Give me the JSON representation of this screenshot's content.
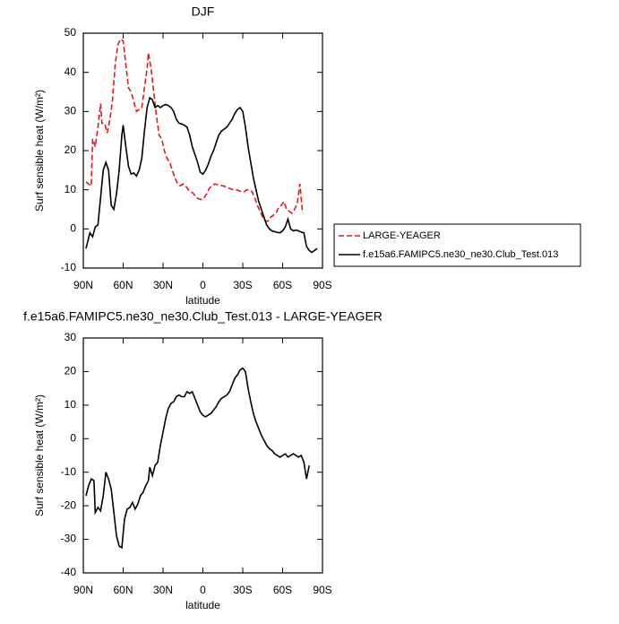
{
  "chart_data": [
    {
      "type": "line",
      "title": "DJF",
      "xlabel": "latitude",
      "ylabel": "Surf sensible heat (W/m²)",
      "xlim": [
        90,
        -90
      ],
      "xticks": [
        {
          "value": 90,
          "label": "90N"
        },
        {
          "value": 60,
          "label": "60N"
        },
        {
          "value": 30,
          "label": "30N"
        },
        0,
        {
          "value": -30,
          "label": "30S"
        },
        {
          "value": -60,
          "label": "60S"
        },
        {
          "value": -90,
          "label": "90S"
        }
      ],
      "ylim": [
        -10,
        50
      ],
      "yticks": [
        -10,
        0,
        10,
        20,
        30,
        40,
        50
      ],
      "legend": "outside-right",
      "series": [
        {
          "name": "LARGE-YEAGER",
          "color": "#e31a1c",
          "dashed": true,
          "x": [
            88,
            86,
            84,
            83,
            81,
            79,
            77,
            76,
            74,
            72,
            70,
            68,
            66,
            64,
            62,
            60,
            58,
            56,
            54,
            52,
            50,
            48,
            46,
            44,
            42,
            41,
            39,
            37,
            35,
            33,
            31,
            29,
            27,
            25,
            23,
            21,
            19,
            17,
            15,
            13,
            11,
            9,
            7,
            5,
            3,
            1,
            -1,
            -3,
            -5,
            -7,
            -9,
            -11,
            -13,
            -15,
            -17,
            -19,
            -21,
            -23,
            -25,
            -27,
            -29,
            -31,
            -33,
            -35,
            -37,
            -39,
            -41,
            -43,
            -45,
            -47,
            -49,
            -51,
            -53,
            -55,
            -57,
            -59,
            -61,
            -63,
            -65,
            -67,
            -69,
            -71,
            -73,
            -75
          ],
          "values": [
            12,
            11.5,
            11,
            23,
            21,
            26,
            32,
            27,
            27,
            24.5,
            28,
            33,
            42,
            47,
            48.5,
            48,
            42,
            36,
            35,
            32.5,
            30,
            30.5,
            31,
            36,
            41,
            45,
            41,
            35,
            29,
            24,
            23,
            20,
            18,
            17,
            15,
            13,
            11.5,
            11,
            11.5,
            11,
            10,
            9.5,
            9,
            8,
            7.7,
            7.5,
            8,
            9,
            10.5,
            11,
            11.5,
            11.3,
            11.2,
            11,
            10.8,
            10.5,
            10.2,
            10,
            10,
            9.8,
            9.5,
            9.5,
            10,
            10,
            9.5,
            8,
            6,
            4.5,
            3,
            2,
            2,
            3,
            3.5,
            4,
            5.5,
            6,
            7,
            5,
            4.5,
            4,
            5,
            6.5,
            11.5,
            4
          ]
        },
        {
          "name": "f.e15a6.FAMIPC5.ne30_ne30.Club_Test.013",
          "color": "#000000",
          "dashed": false,
          "x": [
            88,
            85,
            83,
            81,
            79,
            77,
            75,
            73,
            71,
            69,
            67,
            65,
            63,
            61,
            60,
            58,
            56,
            54,
            52,
            50,
            48,
            46,
            44,
            42,
            40,
            38,
            36,
            34,
            32,
            30,
            28,
            26,
            24,
            22,
            20,
            18,
            16,
            14,
            12,
            10,
            8,
            6,
            4,
            2,
            0,
            -2,
            -4,
            -6,
            -8,
            -10,
            -12,
            -14,
            -16,
            -18,
            -20,
            -22,
            -24,
            -26,
            -28,
            -30,
            -32,
            -34,
            -36,
            -38,
            -40,
            -42,
            -44,
            -46,
            -48,
            -50,
            -52,
            -54,
            -56,
            -58,
            -60,
            -62,
            -64,
            -66,
            -68,
            -70,
            -72,
            -74,
            -76,
            -78,
            -80,
            -82,
            -84,
            -86
          ],
          "values": [
            -5,
            -1,
            -2,
            0.5,
            1,
            8,
            15,
            17,
            15,
            6,
            5,
            9,
            15,
            24,
            26.5,
            21,
            16,
            14,
            14.3,
            13.5,
            15,
            18,
            25,
            31,
            33.5,
            33,
            31,
            31.5,
            31,
            31.5,
            31.8,
            31.5,
            31,
            30,
            28,
            27,
            26.8,
            26.5,
            26,
            24,
            21,
            19,
            17,
            14.5,
            14,
            15,
            16.5,
            18.5,
            20,
            22,
            24,
            25,
            25.5,
            26,
            27,
            28,
            29.5,
            30.5,
            31,
            30,
            26,
            21,
            17,
            13,
            10,
            7,
            5,
            3,
            1,
            0,
            -0.5,
            -0.7,
            -0.9,
            -1,
            -0.5,
            0.5,
            2.5,
            0,
            -0.5,
            -0.3,
            -0.5,
            -0.8,
            -1,
            -4.5,
            -5.5,
            -6,
            -5.5,
            -5
          ]
        }
      ]
    },
    {
      "type": "line",
      "title": "f.e15a6.FAMIPC5.ne30_ne30.Club_Test.013 - LARGE-YEAGER",
      "xlabel": "latitude",
      "ylabel": "Surf sensible heat (W/m²)",
      "xlim": [
        90,
        -90
      ],
      "xticks": [
        {
          "value": 90,
          "label": "90N"
        },
        {
          "value": 60,
          "label": "60N"
        },
        {
          "value": 30,
          "label": "30N"
        },
        0,
        {
          "value": -30,
          "label": "30S"
        },
        {
          "value": -60,
          "label": "60S"
        },
        {
          "value": -90,
          "label": "90S"
        }
      ],
      "ylim": [
        -40,
        30
      ],
      "yticks": [
        -40,
        -30,
        -20,
        -10,
        0,
        10,
        20,
        30
      ],
      "color": "#000000",
      "x": [
        88,
        86,
        84,
        82,
        81,
        79,
        77,
        75,
        73,
        71,
        69,
        67,
        65,
        63,
        61,
        59,
        57,
        55,
        53,
        51,
        49,
        47,
        45,
        43,
        41,
        40,
        38,
        36,
        34,
        32,
        30,
        28,
        26,
        24,
        22,
        20,
        18,
        16,
        14,
        12,
        10,
        8,
        6,
        4,
        2,
        0,
        -2,
        -4,
        -6,
        -8,
        -10,
        -12,
        -14,
        -16,
        -18,
        -20,
        -22,
        -24,
        -26,
        -28,
        -30,
        -32,
        -34,
        -36,
        -38,
        -40,
        -42,
        -44,
        -46,
        -48,
        -50,
        -52,
        -54,
        -56,
        -58,
        -60,
        -62,
        -64,
        -66,
        -68,
        -70,
        -72,
        -74,
        -76,
        -78,
        -80
      ],
      "values": [
        -17,
        -14,
        -12,
        -12.5,
        -22,
        -20.5,
        -21.5,
        -17,
        -10,
        -12,
        -15,
        -22,
        -29,
        -32,
        -32.5,
        -24,
        -21,
        -20.5,
        -19,
        -21,
        -19.5,
        -17,
        -16,
        -14,
        -12.5,
        -8.5,
        -11,
        -8,
        -7,
        -2,
        2,
        6,
        9,
        10.5,
        11,
        12.5,
        13,
        12.5,
        12.5,
        14,
        13.5,
        14,
        12,
        10,
        8,
        7,
        6.5,
        7,
        7.5,
        8.5,
        9.5,
        11,
        12,
        12.5,
        13,
        14,
        16,
        18,
        19,
        20.5,
        21,
        20,
        15,
        11,
        7.5,
        5,
        3,
        1,
        -0.5,
        -2,
        -3,
        -3.5,
        -4.5,
        -5,
        -5.5,
        -5,
        -4.5,
        -5.5,
        -5,
        -4.5,
        -5,
        -5.5,
        -5,
        -7,
        -12,
        -8
      ]
    }
  ]
}
